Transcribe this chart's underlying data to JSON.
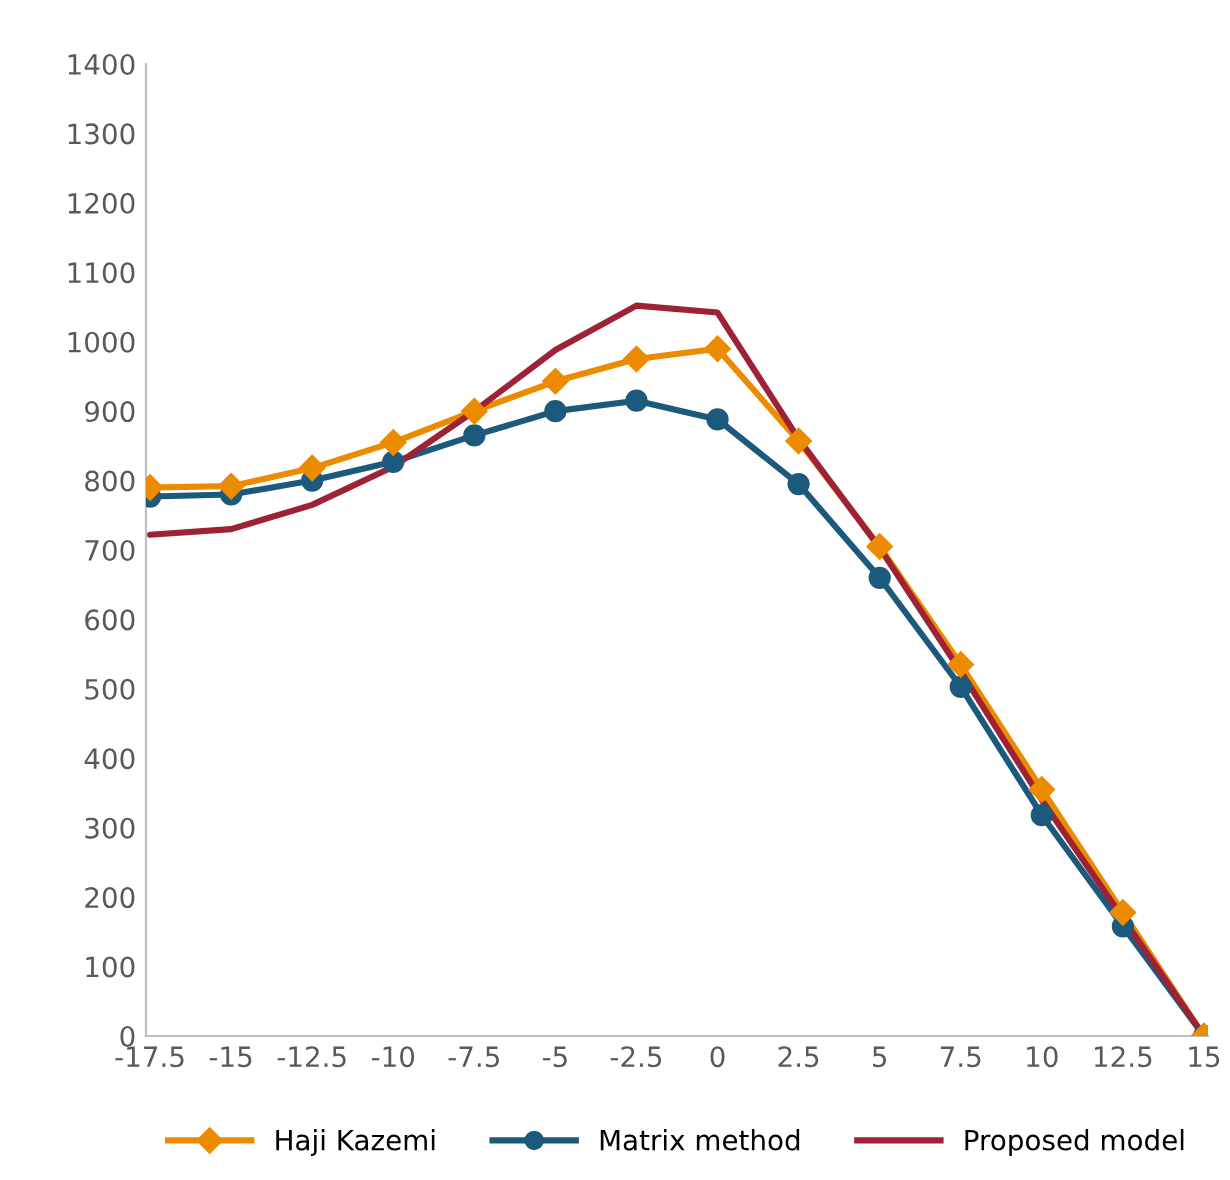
{
  "chart_data": {
    "type": "line",
    "categories": [
      "-17.5",
      "-15",
      "-12.5",
      "-10",
      "-7.5",
      "-5",
      "-2.5",
      "0",
      "2.5",
      "5",
      "7.5",
      "10",
      "12.5",
      "15"
    ],
    "series": [
      {
        "name": "Haji Kazemi",
        "color": "#ed8b00",
        "marker": "diamond",
        "values": [
          790,
          792,
          818,
          855,
          900,
          943,
          975,
          990,
          857,
          705,
          535,
          355,
          178,
          0
        ]
      },
      {
        "name": "Matrix method",
        "color": "#1c5a7d",
        "marker": "circle",
        "values": [
          777,
          780,
          800,
          827,
          865,
          900,
          915,
          888,
          795,
          660,
          503,
          318,
          158,
          0
        ]
      },
      {
        "name": "Proposed model",
        "color": "#9e2236",
        "marker": "none",
        "values": [
          722,
          730,
          765,
          820,
          900,
          988,
          1052,
          1042,
          860,
          703,
          525,
          340,
          170,
          0
        ]
      }
    ],
    "ylim": [
      0,
      1400
    ],
    "yticks": [
      0,
      100,
      200,
      300,
      400,
      500,
      600,
      700,
      800,
      900,
      1000,
      1100,
      1200,
      1300,
      1400
    ],
    "grid": false,
    "legend": "bottom",
    "line_style": "solid"
  }
}
